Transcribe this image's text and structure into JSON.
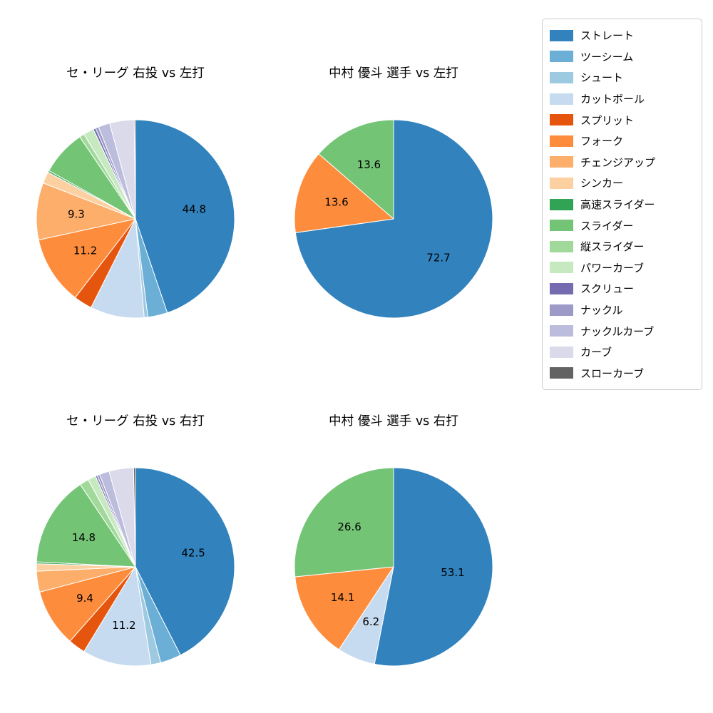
{
  "page": {
    "background": "#ffffff",
    "text_color": "#000000"
  },
  "pitch_colors": {
    "ストレート": "#3182bd",
    "ツーシーム": "#6baed6",
    "シュート": "#9ecae1",
    "カットボール": "#c6dbef",
    "スプリット": "#e6550d",
    "フォーク": "#fd8d3c",
    "チェンジアップ": "#fdae6b",
    "シンカー": "#fdd0a2",
    "高速スライダー": "#31a354",
    "スライダー": "#74c476",
    "縦スライダー": "#a1d99b",
    "パワーカーブ": "#c7e9c0",
    "スクリュー": "#756bb1",
    "ナックル": "#9e9ac8",
    "ナックルカーブ": "#bcbddc",
    "カーブ": "#dadaeb",
    "スローカーブ": "#636363"
  },
  "legend": {
    "position": "top-right",
    "items": [
      "ストレート",
      "ツーシーム",
      "シュート",
      "カットボール",
      "スプリット",
      "フォーク",
      "チェンジアップ",
      "シンカー",
      "高速スライダー",
      "スライダー",
      "縦スライダー",
      "パワーカーブ",
      "スクリュー",
      "ナックル",
      "ナックルカーブ",
      "カーブ",
      "スローカーブ"
    ]
  },
  "chart_data": [
    {
      "type": "pie",
      "title": "セ・リーグ 右投 vs 左打",
      "start_angle": "top",
      "direction": "clockwise",
      "label_distance": 0.6,
      "slices": [
        {
          "name": "ストレート",
          "value": 44.8,
          "label": "44.8"
        },
        {
          "name": "ツーシーム",
          "value": 3.2
        },
        {
          "name": "シュート",
          "value": 0.6
        },
        {
          "name": "カットボール",
          "value": 8.8
        },
        {
          "name": "スプリット",
          "value": 3.0
        },
        {
          "name": "フォーク",
          "value": 11.2,
          "label": "11.2"
        },
        {
          "name": "チェンジアップ",
          "value": 9.3,
          "label": "9.3"
        },
        {
          "name": "シンカー",
          "value": 1.9
        },
        {
          "name": "高速スライダー",
          "value": 0.3
        },
        {
          "name": "スライダー",
          "value": 7.4
        },
        {
          "name": "縦スライダー",
          "value": 0.8
        },
        {
          "name": "パワーカーブ",
          "value": 1.7
        },
        {
          "name": "スクリュー",
          "value": 0.4
        },
        {
          "name": "ナックル",
          "value": 0.5
        },
        {
          "name": "ナックルカーブ",
          "value": 1.9
        },
        {
          "name": "カーブ",
          "value": 4.0
        },
        {
          "name": "スローカーブ",
          "value": 0.2
        }
      ]
    },
    {
      "type": "pie",
      "title": "中村 優斗 選手 vs 左打",
      "start_angle": "top",
      "direction": "clockwise",
      "label_distance": 0.6,
      "slices": [
        {
          "name": "ストレート",
          "value": 72.7,
          "label": "72.7"
        },
        {
          "name": "フォーク",
          "value": 13.6,
          "label": "13.6"
        },
        {
          "name": "スライダー",
          "value": 13.6,
          "label": "13.6"
        }
      ]
    },
    {
      "type": "pie",
      "title": "セ・リーグ 右投 vs 右打",
      "start_angle": "top",
      "direction": "clockwise",
      "label_distance": 0.6,
      "slices": [
        {
          "name": "ストレート",
          "value": 42.5,
          "label": "42.5"
        },
        {
          "name": "ツーシーム",
          "value": 3.4
        },
        {
          "name": "シュート",
          "value": 1.6
        },
        {
          "name": "カットボール",
          "value": 11.2,
          "label": "11.2"
        },
        {
          "name": "スプリット",
          "value": 2.8
        },
        {
          "name": "フォーク",
          "value": 9.4,
          "label": "9.4"
        },
        {
          "name": "チェンジアップ",
          "value": 3.4
        },
        {
          "name": "シンカー",
          "value": 1.2
        },
        {
          "name": "高速スライダー",
          "value": 0.3
        },
        {
          "name": "スライダー",
          "value": 14.8,
          "label": "14.8"
        },
        {
          "name": "縦スライダー",
          "value": 1.5
        },
        {
          "name": "パワーカーブ",
          "value": 1.3
        },
        {
          "name": "スクリュー",
          "value": 0.3
        },
        {
          "name": "ナックル",
          "value": 0.4
        },
        {
          "name": "ナックルカーブ",
          "value": 1.6
        },
        {
          "name": "カーブ",
          "value": 4.0
        },
        {
          "name": "スローカーブ",
          "value": 0.3
        }
      ]
    },
    {
      "type": "pie",
      "title": "中村 優斗 選手 vs 右打",
      "start_angle": "top",
      "direction": "clockwise",
      "label_distance": 0.6,
      "slices": [
        {
          "name": "ストレート",
          "value": 53.1,
          "label": "53.1"
        },
        {
          "name": "カットボール",
          "value": 6.2,
          "label": "6.2"
        },
        {
          "name": "フォーク",
          "value": 14.1,
          "label": "14.1"
        },
        {
          "name": "スライダー",
          "value": 26.6,
          "label": "26.6"
        }
      ]
    }
  ]
}
